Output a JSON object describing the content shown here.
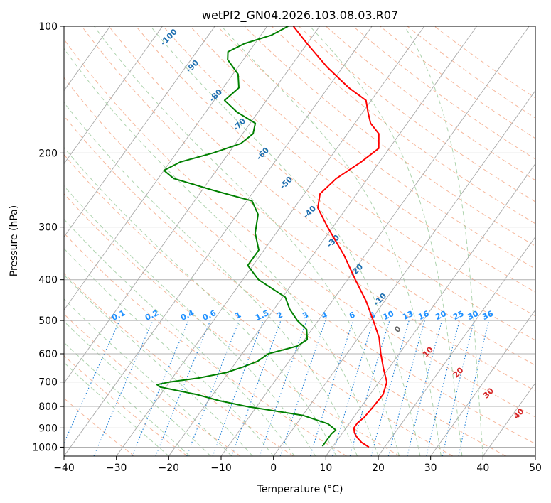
{
  "chart_data": {
    "type": "line",
    "subtype": "skew-t log-p diagram",
    "title": "wetPf2_GN04.2026.103.08.03.R07",
    "xlabel": "Temperature (°C)",
    "ylabel": "Pressure (hPa)",
    "xlim": [
      -40,
      50
    ],
    "ylim": [
      1050,
      100
    ],
    "y_scale": "log",
    "grid": true,
    "x_ticks": [
      -40,
      -30,
      -20,
      -10,
      0,
      10,
      20,
      30,
      40,
      50
    ],
    "y_ticks": [
      100,
      200,
      300,
      400,
      500,
      600,
      700,
      800,
      900,
      1000
    ],
    "series": [
      {
        "role": "temperature",
        "color": "#ff0000",
        "points": [
          {
            "p": 1000,
            "t": 17
          },
          {
            "p": 975,
            "t": 15
          },
          {
            "p": 950,
            "t": 13.5
          },
          {
            "p": 925,
            "t": 12.3
          },
          {
            "p": 900,
            "t": 11.5
          },
          {
            "p": 875,
            "t": 11.5
          },
          {
            "p": 850,
            "t": 12
          },
          {
            "p": 800,
            "t": 12.3
          },
          {
            "p": 750,
            "t": 12.5
          },
          {
            "p": 700,
            "t": 11.5
          },
          {
            "p": 650,
            "t": 9
          },
          {
            "p": 600,
            "t": 6.5
          },
          {
            "p": 550,
            "t": 4
          },
          {
            "p": 500,
            "t": 0.5
          },
          {
            "p": 450,
            "t": -3.5
          },
          {
            "p": 400,
            "t": -8.5
          },
          {
            "p": 350,
            "t": -14
          },
          {
            "p": 300,
            "t": -21
          },
          {
            "p": 270,
            "t": -25.5
          },
          {
            "p": 250,
            "t": -27
          },
          {
            "p": 230,
            "t": -26
          },
          {
            "p": 210,
            "t": -23.5
          },
          {
            "p": 195,
            "t": -22
          },
          {
            "p": 180,
            "t": -24
          },
          {
            "p": 170,
            "t": -27
          },
          {
            "p": 160,
            "t": -29
          },
          {
            "p": 150,
            "t": -31
          },
          {
            "p": 140,
            "t": -36
          },
          {
            "p": 125,
            "t": -43
          },
          {
            "p": 110,
            "t": -50
          },
          {
            "p": 100,
            "t": -55
          }
        ]
      },
      {
        "role": "dewpoint",
        "color": "#008000",
        "points": [
          {
            "p": 995,
            "t": 8
          },
          {
            "p": 960,
            "t": 8
          },
          {
            "p": 930,
            "t": 8
          },
          {
            "p": 910,
            "t": 8.3
          },
          {
            "p": 880,
            "t": 6
          },
          {
            "p": 840,
            "t": 0
          },
          {
            "p": 800,
            "t": -12
          },
          {
            "p": 775,
            "t": -18
          },
          {
            "p": 750,
            "t": -23
          },
          {
            "p": 720,
            "t": -31
          },
          {
            "p": 710,
            "t": -32
          },
          {
            "p": 700,
            "t": -30
          },
          {
            "p": 685,
            "t": -25
          },
          {
            "p": 665,
            "t": -20.5
          },
          {
            "p": 645,
            "t": -18
          },
          {
            "p": 625,
            "t": -16
          },
          {
            "p": 600,
            "t": -15
          },
          {
            "p": 575,
            "t": -10.5
          },
          {
            "p": 555,
            "t": -9.5
          },
          {
            "p": 525,
            "t": -11
          },
          {
            "p": 500,
            "t": -14
          },
          {
            "p": 470,
            "t": -17
          },
          {
            "p": 440,
            "t": -19.5
          },
          {
            "p": 400,
            "t": -27
          },
          {
            "p": 370,
            "t": -31
          },
          {
            "p": 340,
            "t": -31
          },
          {
            "p": 310,
            "t": -34
          },
          {
            "p": 280,
            "t": -36
          },
          {
            "p": 260,
            "t": -39
          },
          {
            "p": 245,
            "t": -48
          },
          {
            "p": 230,
            "t": -57
          },
          {
            "p": 220,
            "t": -60
          },
          {
            "p": 210,
            "t": -58
          },
          {
            "p": 200,
            "t": -53
          },
          {
            "p": 190,
            "t": -49
          },
          {
            "p": 180,
            "t": -48
          },
          {
            "p": 170,
            "t": -49
          },
          {
            "p": 160,
            "t": -54
          },
          {
            "p": 150,
            "t": -58
          },
          {
            "p": 140,
            "t": -57
          },
          {
            "p": 130,
            "t": -59
          },
          {
            "p": 120,
            "t": -63
          },
          {
            "p": 115,
            "t": -64
          },
          {
            "p": 110,
            "t": -62
          },
          {
            "p": 105,
            "t": -58
          },
          {
            "p": 100,
            "t": -56
          }
        ]
      }
    ],
    "background_lines": {
      "isotherm_color": "#a9a9a9",
      "dry_adiabat_color": "#f4a582",
      "moist_adiabat_color": "#92c492",
      "mixing_ratio_color": "#1e7fd6",
      "dry_adiabat_label_color": "#1f6fb0",
      "theta_e_label_color": "#d62728"
    },
    "annotations": {
      "mixing_ratio_labels": [
        "0.1",
        "0.2",
        "0.4",
        "0.6",
        "1",
        "1.5",
        "2",
        "3",
        "4",
        "6",
        "8",
        "10",
        "13",
        "16",
        "20",
        "25",
        "30",
        "36"
      ],
      "dry_adiabat_labels": [
        "-100",
        "-90",
        "-80",
        "-70",
        "-60",
        "-50",
        "-40",
        "-30",
        "-20",
        "-10"
      ],
      "theta_e_labels": [
        "0",
        "10",
        "20",
        "30",
        "40"
      ]
    }
  }
}
